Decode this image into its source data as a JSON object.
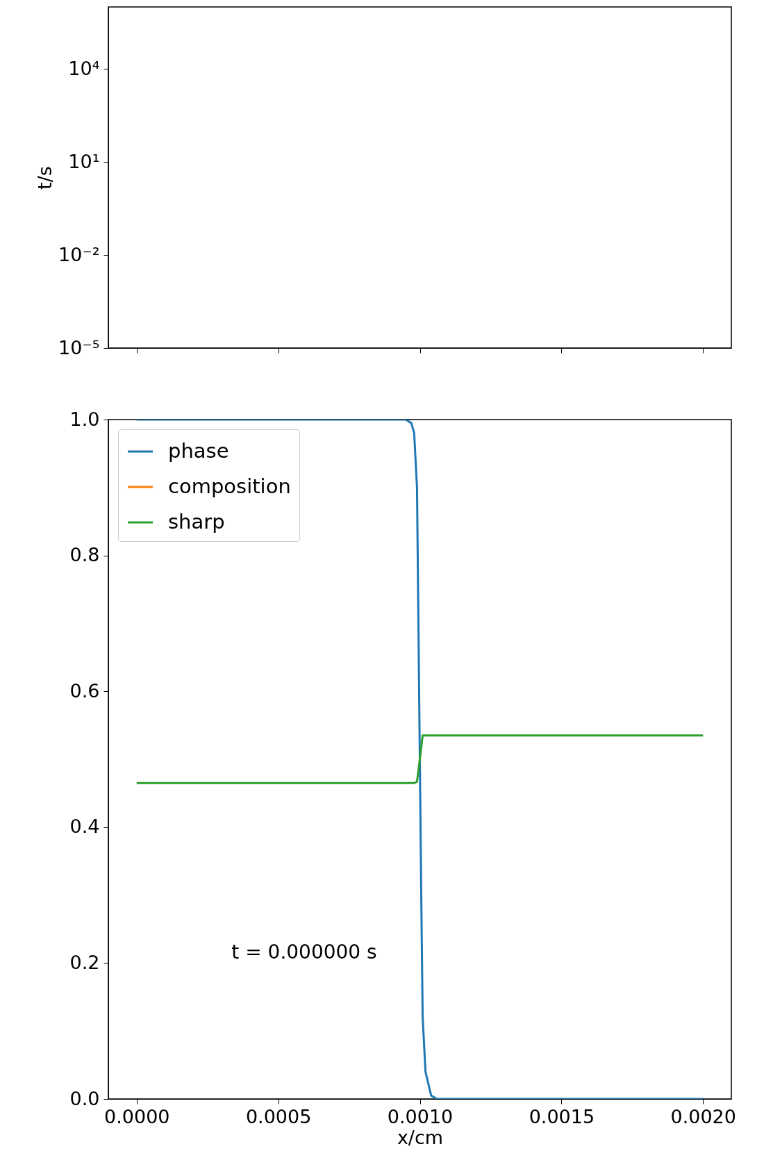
{
  "chart_data": [
    {
      "type": "line",
      "ylabel": "t/s",
      "xlim": [
        -0.0001,
        0.0021
      ],
      "xticks": [
        {
          "value": 0,
          "label": null
        },
        {
          "value": 0.0005,
          "label": null
        },
        {
          "value": 0.001,
          "label": null
        },
        {
          "value": 0.0015,
          "label": null
        },
        {
          "value": 0.002,
          "label": null
        }
      ],
      "ylim": [
        1e-05,
        1000000
      ],
      "yticks": [
        {
          "value": 1e-05,
          "label": "10⁻⁵"
        },
        {
          "value": 0.01,
          "label": "10⁻²"
        },
        {
          "value": 10,
          "label": "10¹"
        },
        {
          "value": 10000,
          "label": "10⁴"
        }
      ],
      "log": true,
      "tick_labels": "y"
    },
    {
      "type": "line",
      "xlabel": "x/cm",
      "xlim": [
        -0.0001,
        0.0021
      ],
      "xticks": [
        {
          "value": 0,
          "label": "0.0000"
        },
        {
          "value": 0.0005,
          "label": "0.0005"
        },
        {
          "value": 0.001,
          "label": "0.0010"
        },
        {
          "value": 0.0015,
          "label": "0.0015"
        },
        {
          "value": 0.002,
          "label": "0.0020"
        }
      ],
      "ylim": [
        0,
        1
      ],
      "yticks": [
        {
          "value": 0,
          "label": "0.0"
        },
        {
          "value": 0.2,
          "label": "0.2"
        },
        {
          "value": 0.4,
          "label": "0.4"
        },
        {
          "value": 0.6,
          "label": "0.6"
        },
        {
          "value": 0.8,
          "label": "0.8"
        },
        {
          "value": 1,
          "label": "1.0"
        }
      ],
      "legend": "top left",
      "annotations": [
        "t = 0.000000 s"
      ],
      "series": [
        {
          "name": "phase",
          "color": "#1f77b4",
          "x": [
            0,
            0.0009,
            0.00095,
            0.00097,
            0.00098,
            0.00099,
            0.000995,
            0.001,
            0.001005,
            0.00101,
            0.00102,
            0.00104,
            0.00106,
            0.002
          ],
          "values": [
            1,
            1,
            1,
            0.995,
            0.98,
            0.9,
            0.7,
            0.5,
            0.3,
            0.12,
            0.04,
            0.005,
            0,
            0
          ]
        },
        {
          "name": "composition",
          "color": "#ff7f0e",
          "values": [
            null
          ]
        },
        {
          "name": "sharp",
          "color": "#2ca02c",
          "x": [
            0,
            0.00098,
            0.00099,
            0.001,
            0.00101,
            0.002
          ],
          "values": [
            0.465,
            0.465,
            0.467,
            0.5,
            0.535,
            0.535
          ]
        }
      ]
    }
  ]
}
